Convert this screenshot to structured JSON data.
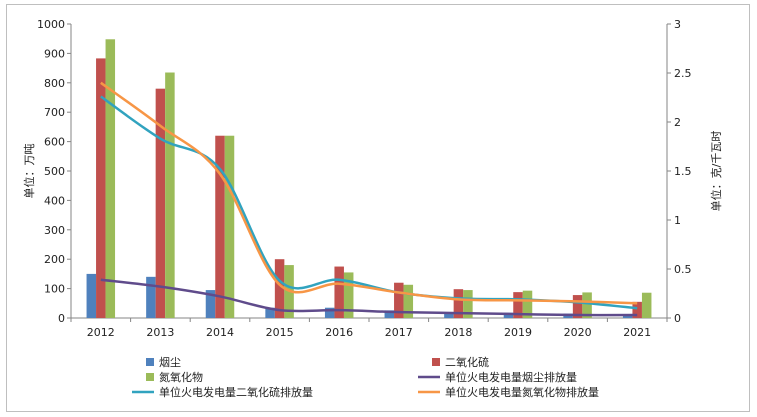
{
  "chart_data": {
    "type": "bar",
    "categories": [
      "2012",
      "2013",
      "2014",
      "2015",
      "2016",
      "2017",
      "2018",
      "2019",
      "2020",
      "2021"
    ],
    "title": "",
    "xlabel": "",
    "ylabel": "单位：万吨",
    "y2label": "单位：克/千瓦时",
    "ylim": [
      0,
      1000
    ],
    "y2lim": [
      0,
      3
    ],
    "yticks": [
      "0",
      "100",
      "200",
      "300",
      "400",
      "500",
      "600",
      "700",
      "800",
      "900",
      "1000"
    ],
    "y2ticks": [
      "0",
      "0.5",
      "1",
      "1.5",
      "2",
      "2.5",
      "3"
    ],
    "grid": false,
    "legend_position": "bottom",
    "series": [
      {
        "name": "烟尘",
        "kind": "bar",
        "axis": "left",
        "color": "#4f81bd",
        "values": [
          150,
          140,
          95,
          35,
          35,
          26,
          20,
          18,
          15,
          12
        ]
      },
      {
        "name": "二氧化硫",
        "kind": "bar",
        "axis": "left",
        "color": "#c0504d",
        "values": [
          883,
          780,
          620,
          200,
          175,
          120,
          98,
          88,
          78,
          55
        ]
      },
      {
        "name": "氮氧化物",
        "kind": "bar",
        "axis": "left",
        "color": "#9bbb59",
        "values": [
          948,
          835,
          620,
          180,
          155,
          113,
          95,
          93,
          87,
          86
        ]
      },
      {
        "name": "单位火电发电量烟尘排放量",
        "kind": "line",
        "axis": "right",
        "color": "#5f4b8b",
        "values": [
          0.39,
          0.32,
          0.22,
          0.08,
          0.08,
          0.06,
          0.05,
          0.04,
          0.03,
          0.03
        ]
      },
      {
        "name": "单位火电发电量二氧化硫排放量",
        "kind": "line",
        "axis": "right",
        "color": "#31a3bf",
        "values": [
          2.26,
          1.83,
          1.52,
          0.38,
          0.39,
          0.26,
          0.2,
          0.19,
          0.16,
          0.1
        ]
      },
      {
        "name": "单位火电发电量氮氧化物排放量",
        "kind": "line",
        "axis": "right",
        "color": "#f79646",
        "values": [
          2.4,
          1.96,
          1.47,
          0.34,
          0.35,
          0.26,
          0.19,
          0.18,
          0.17,
          0.15
        ]
      }
    ]
  }
}
